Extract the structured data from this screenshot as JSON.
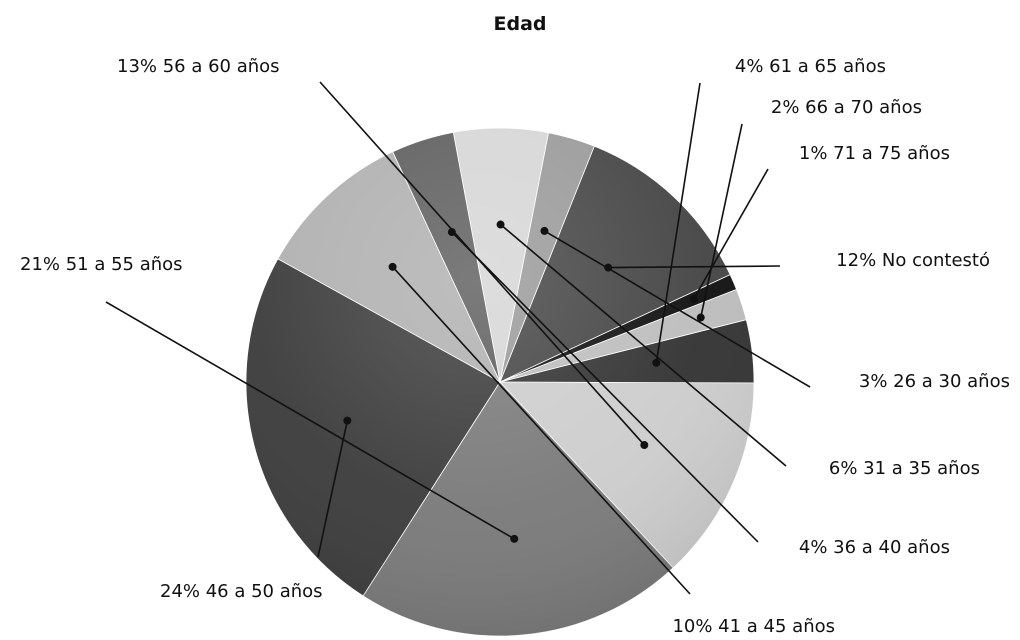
{
  "chart_data": {
    "type": "pie",
    "title": "Edad",
    "slices": [
      {
        "label": "12% No contestó",
        "value": 12,
        "color": "#454545"
      },
      {
        "label": "3% 26 a 30 años",
        "value": 3,
        "color": "#9a9a9a"
      },
      {
        "label": "6% 31 a 35 años",
        "value": 6,
        "color": "#d6d6d6"
      },
      {
        "label": "4% 36 a 40 años",
        "value": 4,
        "color": "#5e5e5e"
      },
      {
        "label": "10% 41 a 45 años",
        "value": 10,
        "color": "#b0b0b0"
      },
      {
        "label": "24% 46 a 50 años",
        "value": 24,
        "color": "#3c3c3c"
      },
      {
        "label": "21% 51 a 55 años",
        "value": 21,
        "color": "#7a7a7a"
      },
      {
        "label": "13% 56 a 60 años",
        "value": 13,
        "color": "#cdcdcd"
      },
      {
        "label": "4% 61 a 65 años",
        "value": 4,
        "color": "#333333"
      },
      {
        "label": "2% 66 a 70 años",
        "value": 2,
        "color": "#bdbdbd"
      },
      {
        "label": "1% 71 a 75 años",
        "value": 1,
        "color": "#111111"
      }
    ]
  }
}
